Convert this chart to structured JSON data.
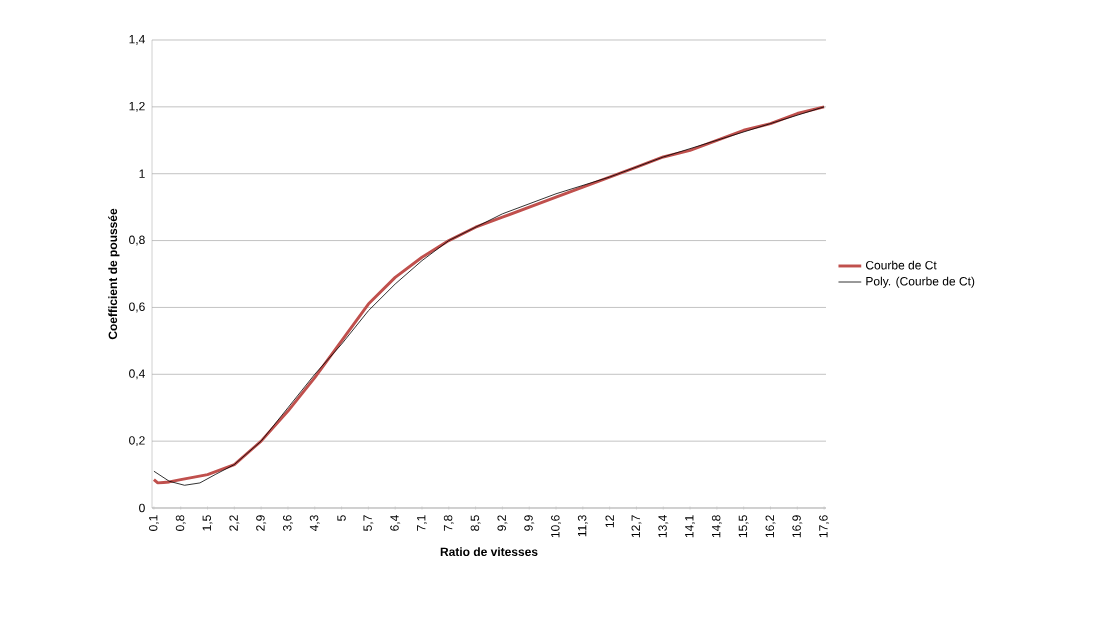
{
  "chart_data": {
    "type": "line",
    "xlabel": "Ratio de vitesses",
    "ylabel": "Coefficient de poussée",
    "xlim": [
      0.05,
      17.65
    ],
    "ylim": [
      0,
      1.4
    ],
    "xticks": [
      {
        "value": 0.1,
        "label": "0,1"
      },
      {
        "value": 0.8,
        "label": "0,8"
      },
      {
        "value": 1.5,
        "label": "1,5"
      },
      {
        "value": 2.2,
        "label": "2,2"
      },
      {
        "value": 2.9,
        "label": "2,9"
      },
      {
        "value": 3.6,
        "label": "3,6"
      },
      {
        "value": 4.3,
        "label": "4,3"
      },
      5,
      {
        "value": 5.7,
        "label": "5,7"
      },
      {
        "value": 6.4,
        "label": "6,4"
      },
      {
        "value": 7.1,
        "label": "7,1"
      },
      {
        "value": 7.8,
        "label": "7,8"
      },
      {
        "value": 8.5,
        "label": "8,5"
      },
      {
        "value": 9.2,
        "label": "9,2"
      },
      {
        "value": 9.9,
        "label": "9,9"
      },
      {
        "value": 10.6,
        "label": "10,6"
      },
      {
        "value": 11.3,
        "label": "11,3"
      },
      12,
      {
        "value": 12.7,
        "label": "12,7"
      },
      {
        "value": 13.4,
        "label": "13,4"
      },
      {
        "value": 14.1,
        "label": "14,1"
      },
      {
        "value": 14.8,
        "label": "14,8"
      },
      {
        "value": 15.5,
        "label": "15,5"
      },
      {
        "value": 16.2,
        "label": "16,2"
      },
      {
        "value": 16.9,
        "label": "16,9"
      },
      {
        "value": 17.6,
        "label": "17,6"
      }
    ],
    "yticks": [
      0,
      {
        "value": 0.2,
        "label": "0,2"
      },
      {
        "value": 0.4,
        "label": "0,4"
      },
      {
        "value": 0.6,
        "label": "0,6"
      },
      {
        "value": 0.8,
        "label": "0,8"
      },
      1,
      {
        "value": 1.2,
        "label": "1,2"
      },
      {
        "value": 1.4,
        "label": "1,4"
      }
    ],
    "grid": "y",
    "legend": "right",
    "series": [
      {
        "name": "Courbe de Ct",
        "color": "#c0504d",
        "x": [
          0.1,
          0.2,
          0.5,
          0.8,
          1.5,
          2.2,
          2.9,
          3.6,
          4.3,
          5,
          5.7,
          6.4,
          7.1,
          7.8,
          8.5,
          9.2,
          9.9,
          10.6,
          11.3,
          12,
          12.7,
          13.4,
          14.1,
          14.8,
          15.5,
          16.2,
          16.9,
          17.6
        ],
        "values": [
          0.085,
          0.075,
          0.078,
          0.085,
          0.1,
          0.13,
          0.2,
          0.29,
          0.39,
          0.5,
          0.61,
          0.69,
          0.75,
          0.8,
          0.84,
          0.87,
          0.9,
          0.93,
          0.96,
          0.99,
          1.02,
          1.05,
          1.07,
          1.1,
          1.13,
          1.15,
          1.18,
          1.2
        ]
      },
      {
        "name": "Poly. (Courbe de Ct)",
        "color": "#000000",
        "x": [
          0.1,
          0.5,
          0.9,
          1.3,
          1.7,
          2.2,
          2.9,
          3.6,
          4.3,
          5,
          5.7,
          6.4,
          7.1,
          7.8,
          9.2,
          10.6,
          12,
          13.4,
          14.8,
          16.2,
          17.6
        ],
        "values": [
          0.11,
          0.08,
          0.068,
          0.075,
          0.1,
          0.13,
          0.2,
          0.3,
          0.4,
          0.49,
          0.59,
          0.67,
          0.74,
          0.8,
          0.88,
          0.94,
          0.99,
          1.05,
          1.1,
          1.15,
          1.2
        ]
      }
    ]
  }
}
